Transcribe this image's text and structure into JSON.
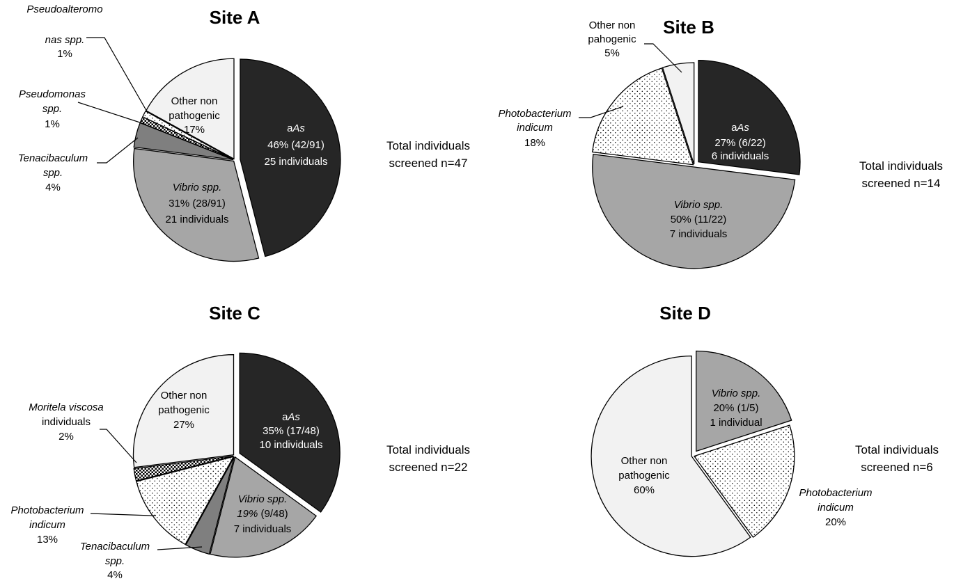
{
  "chart_data": [
    {
      "type": "pie",
      "title": "Site A",
      "total_label": [
        "Total individuals",
        "screened n=47"
      ],
      "slices": [
        {
          "name": "aAs",
          "value": 46,
          "pattern": "black",
          "label": [
            [
              [
                "a",
                ""
              ],
              [
                "As",
                "it"
              ]
            ],
            [
              [
                "46% (42/91)",
                ""
              ]
            ],
            [
              [
                "25 individuals",
                ""
              ]
            ]
          ]
        },
        {
          "name": "Vibrio spp.",
          "value": 31,
          "pattern": "gray",
          "label": [
            [
              [
                "Vibrio spp.",
                "it"
              ]
            ],
            [
              [
                "31%  (28/91)",
                ""
              ]
            ],
            [
              [
                "21 individuals",
                ""
              ]
            ]
          ]
        },
        {
          "name": "Tenacibaculum spp.",
          "value": 4,
          "pattern": "darkgray",
          "label": [
            [
              [
                "Tenacibaculum",
                "it"
              ]
            ],
            [
              [
                "spp.",
                "it"
              ]
            ],
            [
              [
                "4%",
                ""
              ]
            ]
          ]
        },
        {
          "name": "Pseudomonas spp.",
          "value": 1,
          "pattern": "checker",
          "label": [
            [
              [
                "Pseudomonas",
                "it"
              ]
            ],
            [
              [
                "spp.",
                "it"
              ]
            ],
            [
              [
                "1%",
                ""
              ]
            ]
          ]
        },
        {
          "name": "Pseudoalteromonas spp.",
          "value": 1,
          "pattern": "dots",
          "label": [
            [
              [
                "Pseudoalteromo",
                "it"
              ]
            ],
            [
              [
                "nas  spp.",
                "it"
              ]
            ],
            [
              [
                "1%",
                ""
              ]
            ]
          ]
        },
        {
          "name": "Other non pathogenic",
          "value": 17,
          "pattern": "light",
          "label": [
            [
              [
                "Other non",
                ""
              ]
            ],
            [
              [
                "pathogenic",
                ""
              ]
            ],
            [
              [
                "17%",
                ""
              ]
            ]
          ]
        }
      ]
    },
    {
      "type": "pie",
      "title": "Site B",
      "total_label": [
        "Total individuals",
        "screened n=14"
      ],
      "slices": [
        {
          "name": "aAs",
          "value": 27,
          "pattern": "black",
          "label": [
            [
              [
                "a",
                ""
              ],
              [
                "As",
                "it"
              ]
            ],
            [
              [
                "27% (6/22)",
                ""
              ]
            ],
            [
              [
                "6 individuals",
                ""
              ]
            ]
          ]
        },
        {
          "name": "Vibrio spp.",
          "value": 50,
          "pattern": "gray",
          "label": [
            [
              [
                "Vibrio spp.",
                "it"
              ]
            ],
            [
              [
                "50% (11/22)",
                ""
              ]
            ],
            [
              [
                "7 individuals",
                ""
              ]
            ]
          ]
        },
        {
          "name": "Photobacterium indicum",
          "value": 18,
          "pattern": "dots",
          "label": [
            [
              [
                "Photobacterium",
                "it"
              ]
            ],
            [
              [
                "indicum",
                "it"
              ]
            ],
            [
              [
                "18%",
                ""
              ]
            ]
          ]
        },
        {
          "name": "Other non pahogenic",
          "value": 5,
          "pattern": "light",
          "label": [
            [
              [
                "Other non",
                ""
              ]
            ],
            [
              [
                "pahogenic",
                ""
              ]
            ],
            [
              [
                "5%",
                ""
              ]
            ]
          ]
        }
      ]
    },
    {
      "type": "pie",
      "title": "Site C",
      "total_label": [
        "Total individuals",
        "screened n=22"
      ],
      "slices": [
        {
          "name": "aAs",
          "value": 35,
          "pattern": "black",
          "label": [
            [
              [
                "a",
                ""
              ],
              [
                "As",
                "it"
              ]
            ],
            [
              [
                "35% (17/48)",
                ""
              ]
            ],
            [
              [
                "10 individuals",
                ""
              ]
            ]
          ]
        },
        {
          "name": "Vibrio spp.",
          "value": 19,
          "pattern": "gray",
          "label": [
            [
              [
                "Vibrio spp.",
                "it"
              ]
            ],
            [
              [
                "19%",
                "it"
              ],
              [
                " (9/48)",
                ""
              ]
            ],
            [
              [
                "7 individuals",
                ""
              ]
            ]
          ]
        },
        {
          "name": "Tenacibaculum spp.",
          "value": 4,
          "pattern": "darkgray",
          "label": [
            [
              [
                "Tenacibaculum",
                "it"
              ]
            ],
            [
              [
                "spp.",
                "it"
              ]
            ],
            [
              [
                "4%",
                ""
              ]
            ]
          ]
        },
        {
          "name": "Photobacterium indicum",
          "value": 13,
          "pattern": "dots",
          "label": [
            [
              [
                "Photobacterium",
                "it"
              ]
            ],
            [
              [
                "indicum",
                "it"
              ]
            ],
            [
              [
                "13%",
                ""
              ]
            ]
          ]
        },
        {
          "name": "Moritela viscosa individuals",
          "value": 2,
          "pattern": "checker",
          "label": [
            [
              [
                "Moritela viscosa",
                "it"
              ]
            ],
            [
              [
                "individuals",
                ""
              ]
            ],
            [
              [
                "2%",
                ""
              ]
            ]
          ]
        },
        {
          "name": "Other non pathogenic",
          "value": 27,
          "pattern": "light",
          "label": [
            [
              [
                "Other non",
                ""
              ]
            ],
            [
              [
                "pathogenic",
                ""
              ]
            ],
            [
              [
                "27%",
                ""
              ]
            ]
          ]
        }
      ]
    },
    {
      "type": "pie",
      "title": "Site D",
      "total_label": [
        "Total individuals",
        "screened n=6"
      ],
      "slices": [
        {
          "name": "Vibrio spp.",
          "value": 20,
          "pattern": "gray",
          "label": [
            [
              [
                "Vibrio spp.",
                "it"
              ]
            ],
            [
              [
                "20% (1/5)",
                ""
              ]
            ],
            [
              [
                "1 individual",
                ""
              ]
            ]
          ]
        },
        {
          "name": "Photobacterium indicum",
          "value": 20,
          "pattern": "dots",
          "label": [
            [
              [
                "Photobacterium",
                "it"
              ]
            ],
            [
              [
                "indicum",
                "it"
              ]
            ],
            [
              [
                "20%",
                ""
              ]
            ]
          ]
        },
        {
          "name": "Other non pathogenic",
          "value": 60,
          "pattern": "light",
          "label": [
            [
              [
                "Other non",
                ""
              ]
            ],
            [
              [
                "pathogenic",
                ""
              ]
            ],
            [
              [
                "60%",
                ""
              ]
            ]
          ]
        }
      ]
    }
  ],
  "colors": {
    "black": "#262626",
    "gray": "#a6a6a6",
    "darkgray": "#7f7f7f",
    "light": "#f2f2f2",
    "dots_bg": "#ffffff",
    "dots_fg": "#000000"
  }
}
